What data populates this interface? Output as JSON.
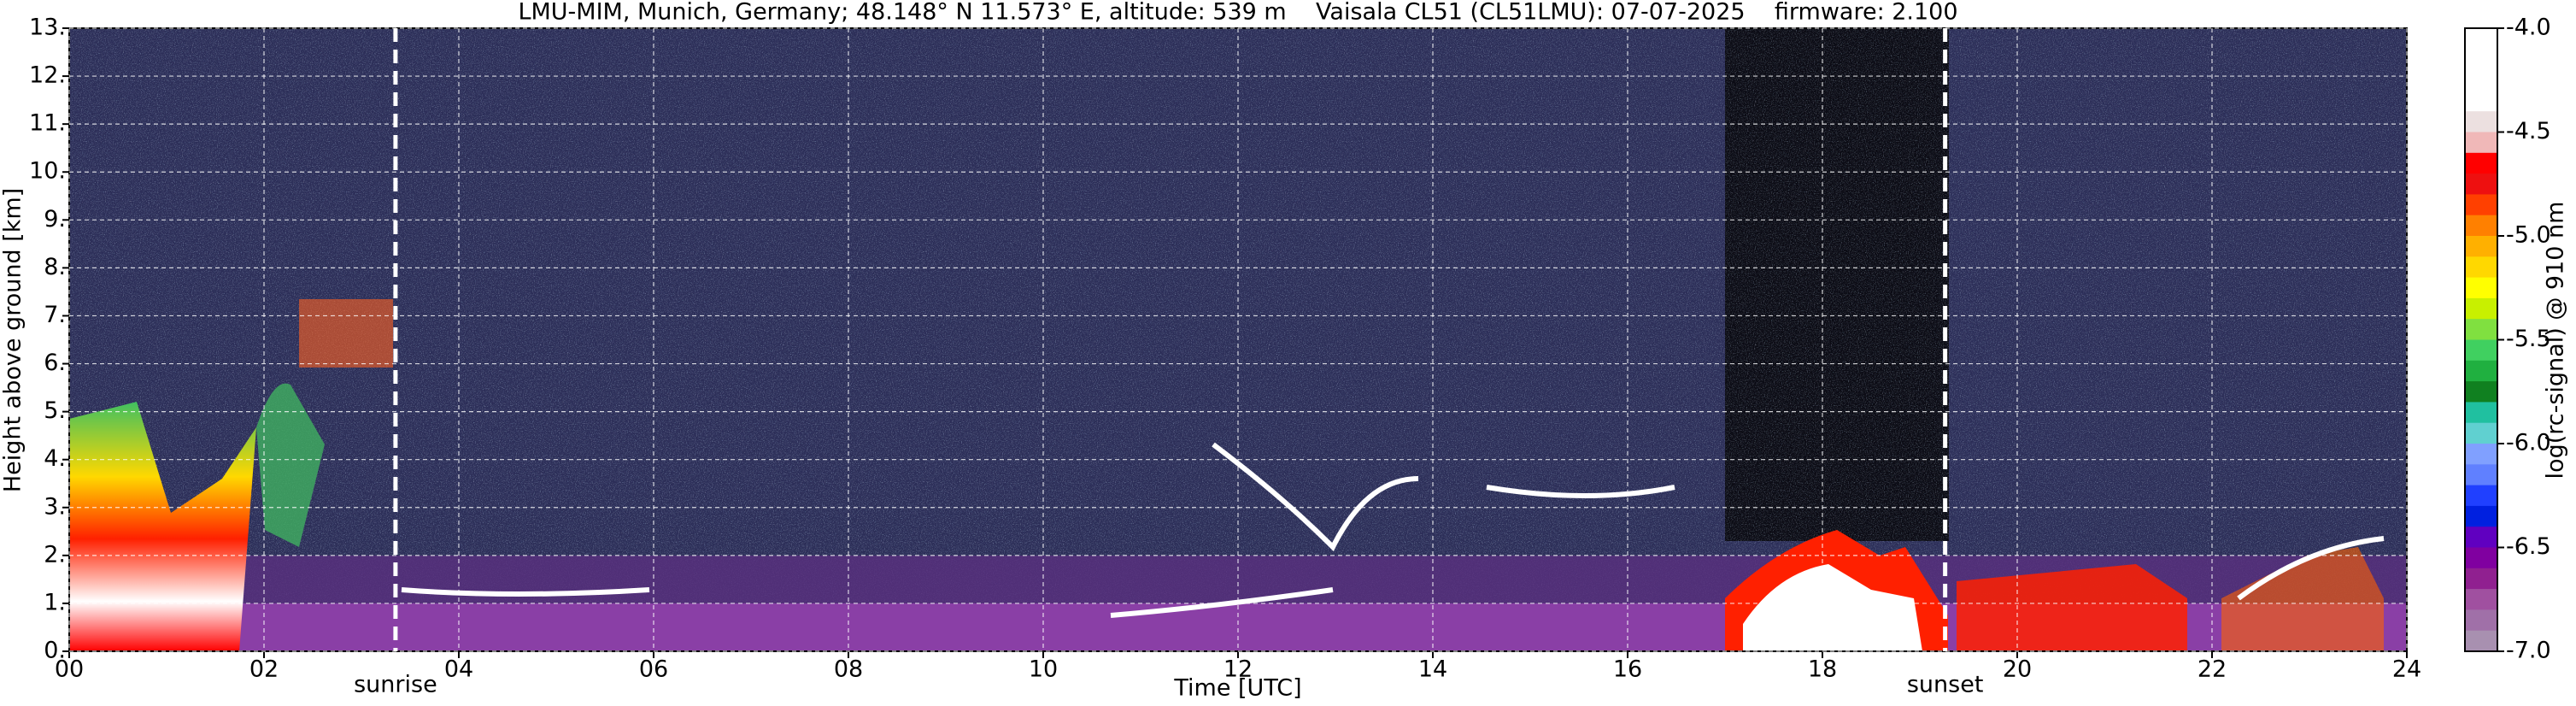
{
  "chart_data": {
    "type": "heatmap",
    "title": "LMU-MIM, Munich, Germany; 48.148° N 11.573° E, altitude: 539 m    Vaisala CL51 (CL51LMU): 07-07-2025    firmware: 2.100",
    "x_label": "Time [UTC]",
    "y_label": "Height above ground [km]",
    "xlim": [
      0,
      24
    ],
    "xticks": [
      {
        "value": 0,
        "label": "00"
      },
      {
        "value": 2,
        "label": "02"
      },
      {
        "value": 4,
        "label": "04"
      },
      {
        "value": 6,
        "label": "06"
      },
      {
        "value": 8,
        "label": "08"
      },
      10,
      12,
      14,
      16,
      18,
      20,
      22,
      24
    ],
    "ylim": [
      0,
      13
    ],
    "yticks": [
      {
        "value": 0,
        "label": "0."
      },
      {
        "value": 1,
        "label": "1."
      },
      {
        "value": 2,
        "label": "2."
      },
      {
        "value": 3,
        "label": "3."
      },
      {
        "value": 4,
        "label": "4."
      },
      {
        "value": 5,
        "label": "5."
      },
      {
        "value": 6,
        "label": "6."
      },
      {
        "value": 7,
        "label": "7."
      },
      {
        "value": 8,
        "label": "8."
      },
      {
        "value": 9,
        "label": "9."
      },
      {
        "value": 10,
        "label": "10."
      },
      {
        "value": 11,
        "label": "11."
      },
      {
        "value": 12,
        "label": "12."
      },
      {
        "value": 13,
        "label": "13."
      }
    ],
    "grid": true,
    "annotations": [
      {
        "label": "sunrise",
        "x": 3.35
      },
      {
        "label": "sunset",
        "x": 19.26
      }
    ],
    "colorbar": {
      "label": "log(rc-signal) @ 910 nm",
      "lim": [
        -7,
        -4
      ],
      "ticks": [
        {
          "value": -4,
          "label": "-4.0"
        },
        -4.5,
        {
          "value": -5,
          "label": "-5.0"
        },
        -5.5,
        {
          "value": -6,
          "label": "-6.0"
        },
        -6.5,
        {
          "value": -7,
          "label": "-7.0"
        }
      ],
      "colors": [
        "#ffffff",
        "#ffffff",
        "#ffffff",
        "#ffffff",
        "#ece0e0",
        "#f0b8b8",
        "#ff0000",
        "#ee1010",
        "#ff4000",
        "#ff8000",
        "#ffb000",
        "#ffd800",
        "#ffff00",
        "#c8f000",
        "#80e040",
        "#40d060",
        "#20b040",
        "#108020",
        "#20c0a0",
        "#60d0d0",
        "#80a0ff",
        "#6080ff",
        "#2040ff",
        "#0020e0",
        "#6000c0",
        "#8000a0",
        "#902090",
        "#a050a0",
        "#a070a8",
        "#a890b0"
      ]
    }
  }
}
